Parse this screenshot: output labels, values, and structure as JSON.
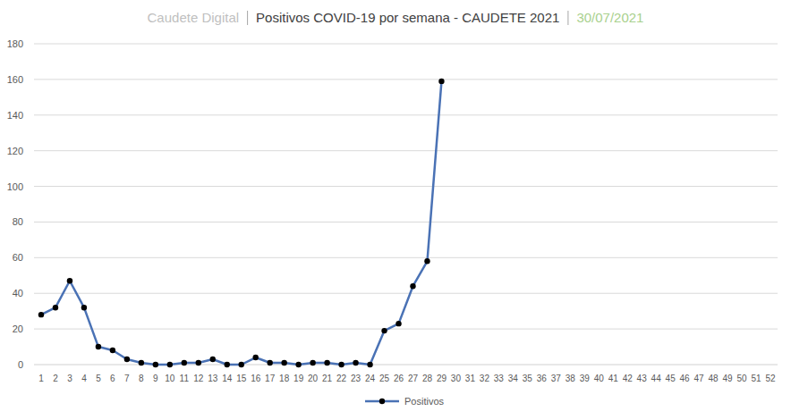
{
  "chart_data": {
    "type": "line",
    "title": "Positivos COVID-19 por semana - CAUDETE 2021",
    "annotations": [
      "Caudete Digital",
      "30/07/2021"
    ],
    "categories": [
      1,
      2,
      3,
      4,
      5,
      6,
      7,
      8,
      9,
      10,
      11,
      12,
      13,
      14,
      15,
      16,
      17,
      18,
      19,
      20,
      21,
      22,
      23,
      24,
      25,
      26,
      27,
      28,
      29,
      30,
      31,
      32,
      33,
      34,
      35,
      36,
      37,
      38,
      39,
      40,
      41,
      42,
      43,
      44,
      45,
      46,
      47,
      48,
      49,
      50,
      51,
      52
    ],
    "series": [
      {
        "name": "Positivos",
        "color": "#4a72b5",
        "marker": "circle",
        "values": [
          28,
          32,
          47,
          32,
          10,
          8,
          3,
          1,
          0,
          0,
          1,
          1,
          3,
          0,
          0,
          4,
          1,
          1,
          0,
          1,
          1,
          0,
          1,
          0,
          19,
          23,
          44,
          58,
          159,
          null,
          null,
          null,
          null,
          null,
          null,
          null,
          null,
          null,
          null,
          null,
          null,
          null,
          null,
          null,
          null,
          null,
          null,
          null,
          null,
          null,
          null,
          null
        ]
      }
    ],
    "ylim": [
      0,
      180
    ],
    "yticks": [
      0,
      20,
      40,
      60,
      80,
      100,
      120,
      140,
      160,
      180
    ],
    "grid": true,
    "legend": "bottom"
  }
}
